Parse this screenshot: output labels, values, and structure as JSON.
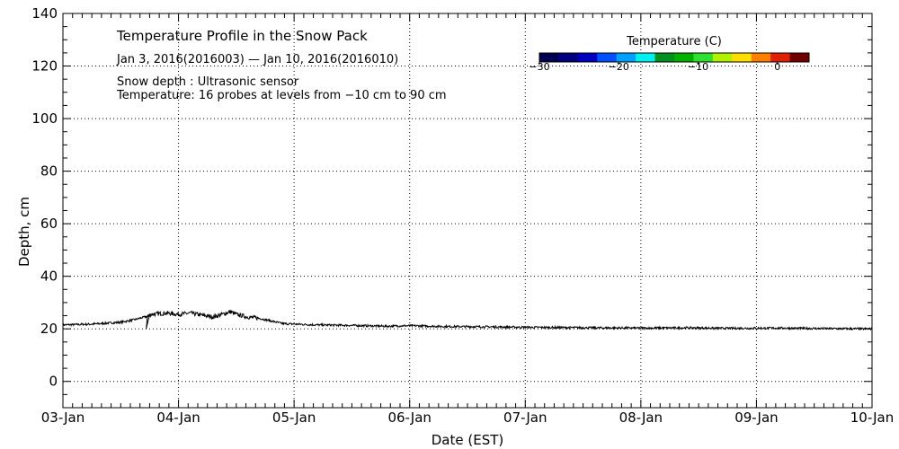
{
  "chart_data": {
    "type": "line",
    "title": "Temperature Profile in the Snow Pack",
    "subtitle": "Jan  3, 2016(2016003) — Jan 10, 2016(2016010)",
    "notes": [
      "Snow depth : Ultrasonic sensor",
      "Temperature: 16 probes at levels from −10 cm to 90 cm"
    ],
    "xlabel": "Date (EST)",
    "ylabel": "Depth, cm",
    "xlim": [
      0,
      7
    ],
    "ylim": [
      -10,
      140
    ],
    "x_ticks": [
      {
        "value": 0,
        "label": "03-Jan"
      },
      {
        "value": 1,
        "label": "04-Jan"
      },
      {
        "value": 2,
        "label": "05-Jan"
      },
      {
        "value": 3,
        "label": "06-Jan"
      },
      {
        "value": 4,
        "label": "07-Jan"
      },
      {
        "value": 5,
        "label": "08-Jan"
      },
      {
        "value": 6,
        "label": "09-Jan"
      },
      {
        "value": 7,
        "label": "10-Jan"
      }
    ],
    "y_ticks": [
      {
        "value": 0,
        "label": "0"
      },
      {
        "value": 20,
        "label": "20"
      },
      {
        "value": 40,
        "label": "40"
      },
      {
        "value": 60,
        "label": "60"
      },
      {
        "value": 80,
        "label": "80"
      },
      {
        "value": 100,
        "label": "100"
      },
      {
        "value": 120,
        "label": "120"
      },
      {
        "value": 140,
        "label": "140"
      }
    ],
    "grid": true,
    "series": [
      {
        "name": "Snow depth",
        "color": "#000000",
        "x": [
          0,
          0.25,
          0.5,
          0.62,
          0.75,
          0.72,
          0.73,
          0.76,
          0.9,
          1.0,
          1.1,
          1.2,
          1.3,
          1.4,
          1.45,
          1.5,
          1.6,
          1.7,
          1.8,
          1.9,
          2.0,
          2.2,
          2.5,
          2.8,
          3.0,
          3.3,
          3.6,
          4.0,
          4.3,
          4.6,
          5.0,
          5.4,
          5.8,
          6.2,
          6.6,
          7.0
        ],
        "y": [
          21.5,
          21.8,
          22.5,
          23.5,
          25.0,
          20.0,
          24.5,
          25.5,
          26.0,
          25.5,
          26.0,
          25.2,
          24.5,
          25.8,
          26.5,
          25.5,
          24.5,
          24.0,
          23.0,
          22.0,
          21.8,
          21.5,
          21.3,
          21.0,
          21.2,
          20.9,
          20.8,
          20.6,
          20.5,
          20.4,
          20.3,
          20.4,
          20.2,
          20.3,
          20.1,
          20.0
        ]
      }
    ],
    "colorbar": {
      "title": "Temperature (C)",
      "colors": [
        "#000050",
        "#000080",
        "#0000c0",
        "#0050ff",
        "#00a0ff",
        "#00f0f0",
        "#009020",
        "#00b000",
        "#30e030",
        "#b0f000",
        "#ffe000",
        "#ff8000",
        "#e02000",
        "#700000"
      ],
      "ticks": [
        {
          "value": -30,
          "label": "−30"
        },
        {
          "value": -20,
          "label": "−20"
        },
        {
          "value": -10,
          "label": "−10"
        },
        {
          "value": 0,
          "label": "0"
        }
      ],
      "range": [
        -30,
        4
      ]
    }
  }
}
